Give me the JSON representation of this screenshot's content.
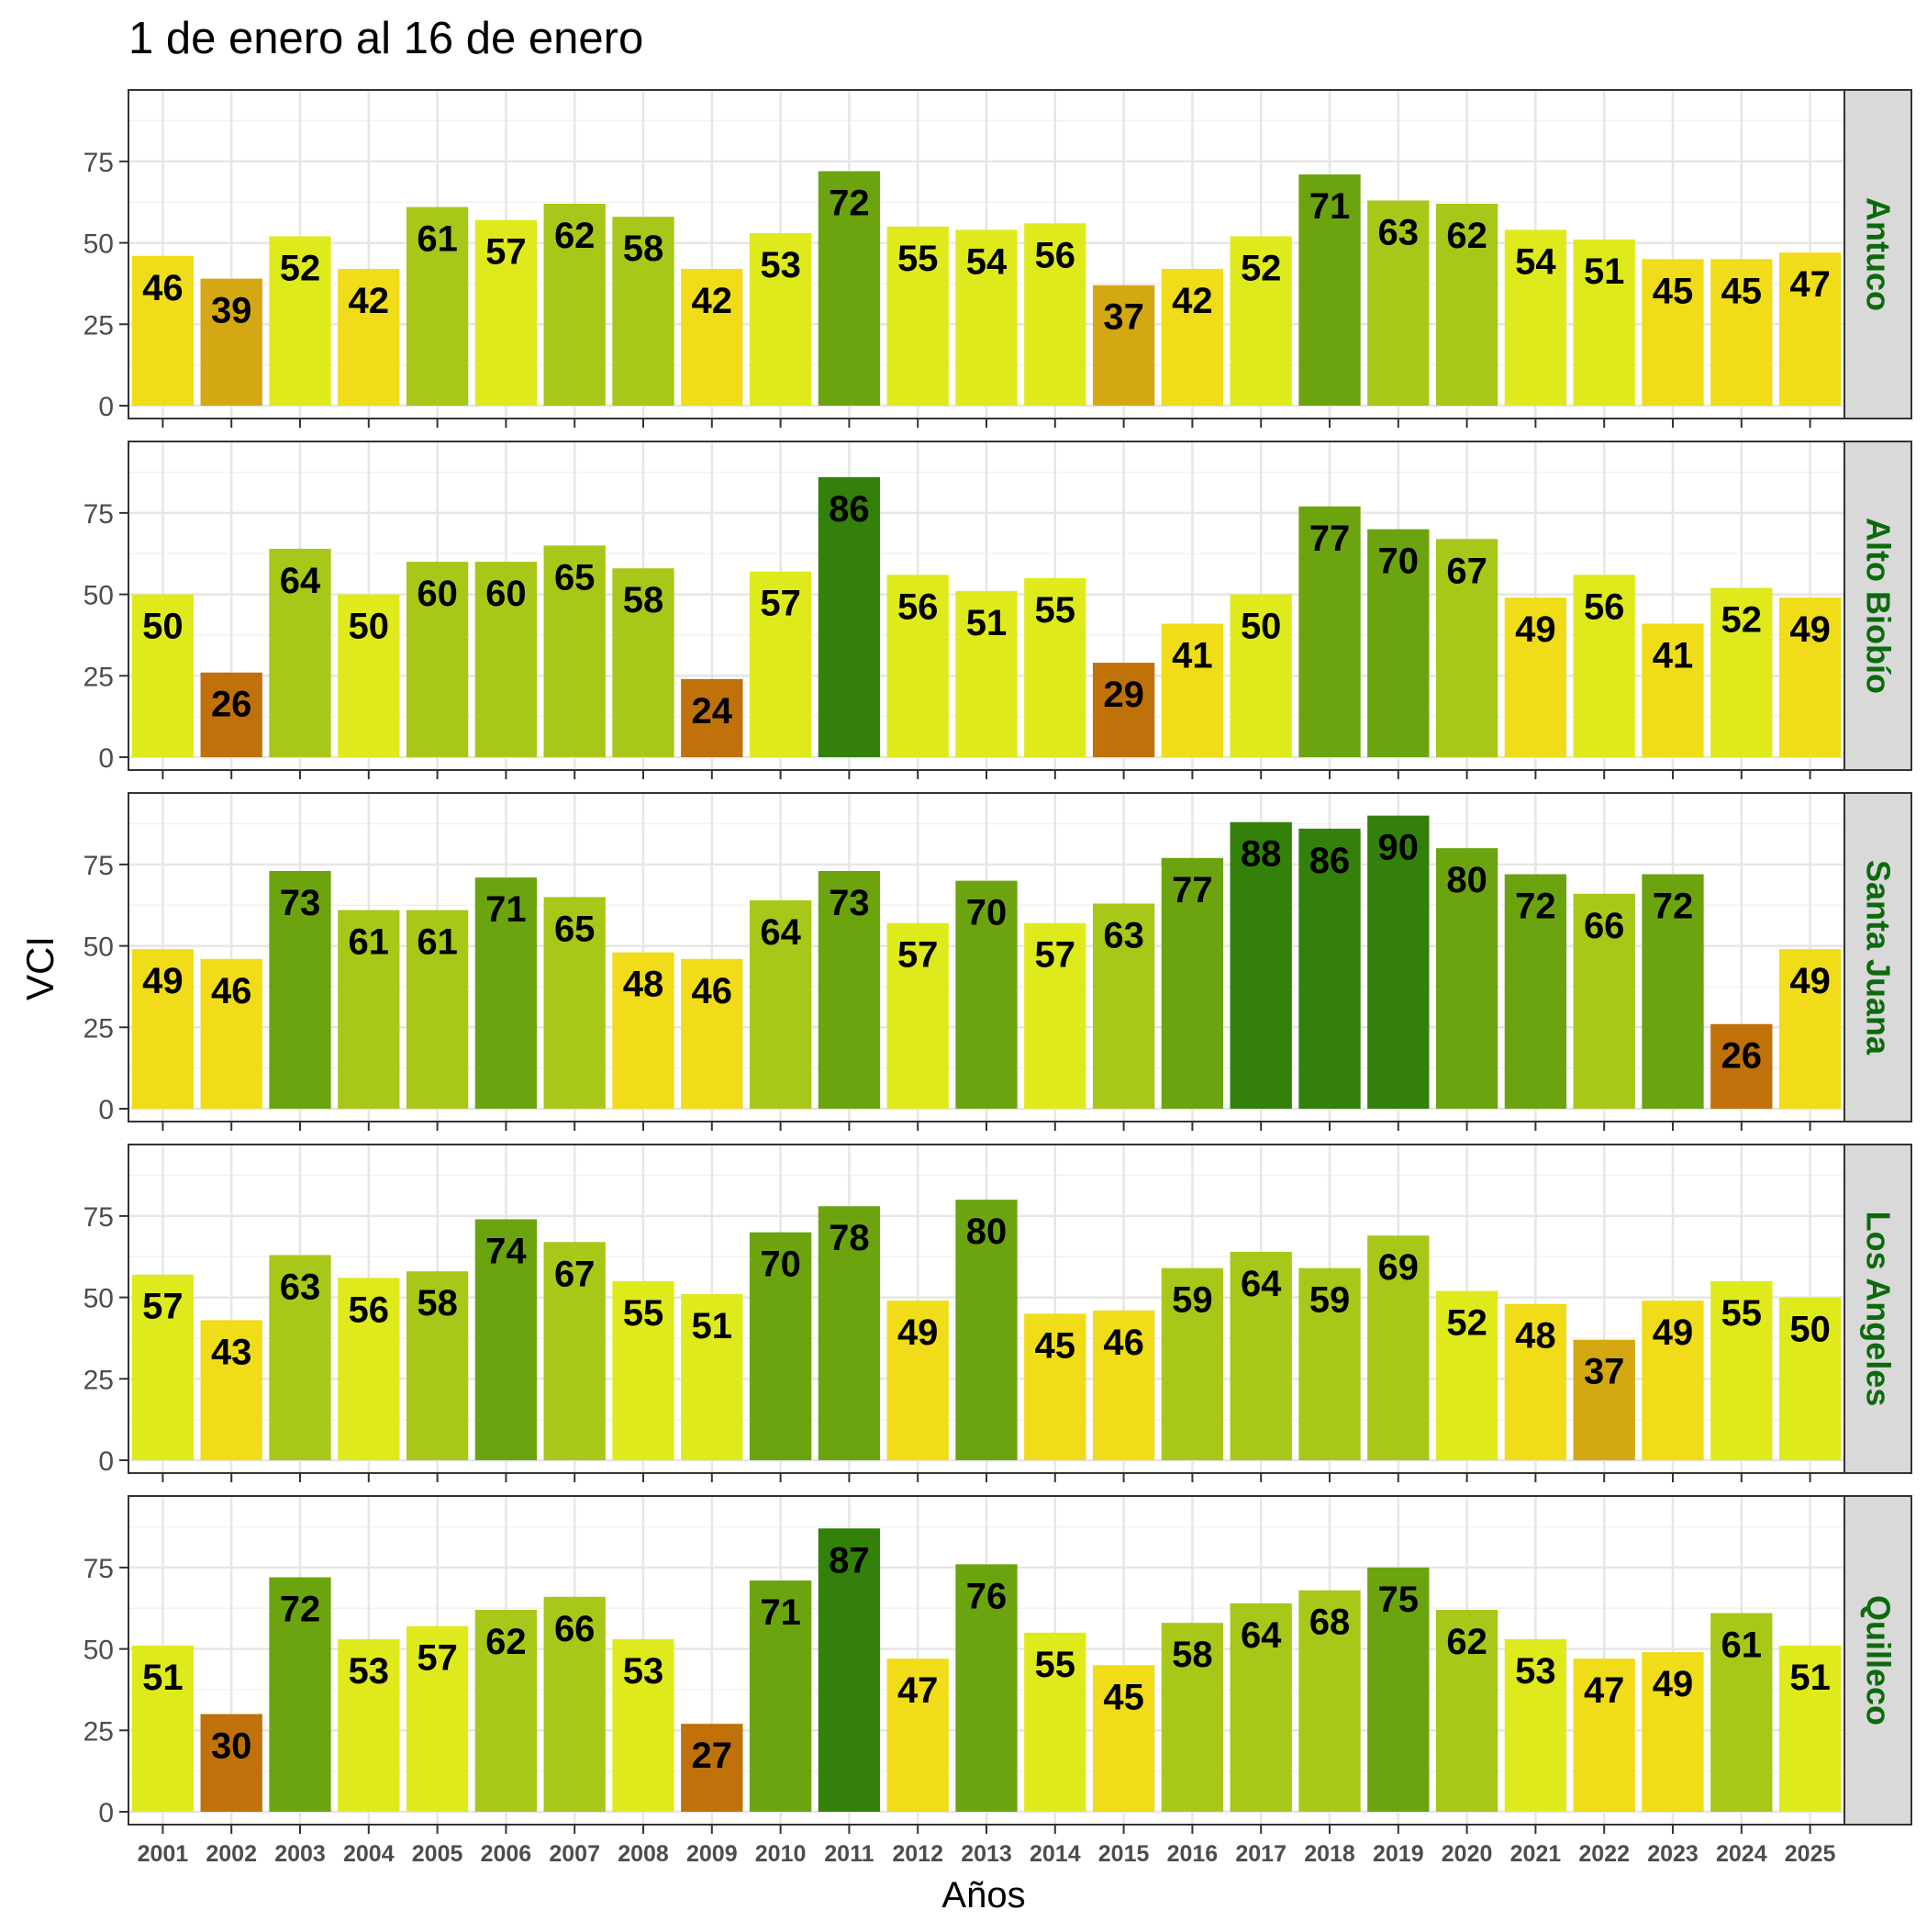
{
  "chart_data": {
    "type": "bar",
    "title": "1 de enero al 16 de enero",
    "xlabel": "Años",
    "ylabel": "VCI",
    "ylim": [
      0,
      93
    ],
    "yticks": [
      0,
      25,
      50,
      75
    ],
    "grid": true,
    "categories": [
      "2001",
      "2002",
      "2003",
      "2004",
      "2005",
      "2006",
      "2007",
      "2008",
      "2009",
      "2010",
      "2011",
      "2012",
      "2013",
      "2014",
      "2015",
      "2016",
      "2017",
      "2018",
      "2019",
      "2020",
      "2021",
      "2022",
      "2023",
      "2024",
      "2025"
    ],
    "color_scale": {
      "stops": [
        {
          "min": 20,
          "color": "#c0710a"
        },
        {
          "min": 35,
          "color": "#d4a812"
        },
        {
          "min": 40,
          "color": "#f0dc18"
        },
        {
          "min": 50,
          "color": "#dfea1c"
        },
        {
          "min": 58,
          "color": "#a7c818"
        },
        {
          "min": 70,
          "color": "#6ca410"
        },
        {
          "min": 85,
          "color": "#33800a"
        }
      ]
    },
    "strip_text_color": "#0c6a0c",
    "series": [
      {
        "name": "Antuco",
        "values": [
          46,
          39,
          52,
          42,
          61,
          57,
          62,
          58,
          42,
          53,
          72,
          55,
          54,
          56,
          37,
          42,
          52,
          71,
          63,
          62,
          54,
          51,
          45,
          45,
          47
        ]
      },
      {
        "name": "Alto Biobío",
        "values": [
          50,
          26,
          64,
          50,
          60,
          60,
          65,
          58,
          24,
          57,
          86,
          56,
          51,
          55,
          29,
          41,
          50,
          77,
          70,
          67,
          49,
          56,
          41,
          52,
          49
        ]
      },
      {
        "name": "Santa Juana",
        "values": [
          49,
          46,
          73,
          61,
          61,
          71,
          65,
          48,
          46,
          64,
          73,
          57,
          70,
          57,
          63,
          77,
          88,
          86,
          90,
          80,
          72,
          66,
          72,
          26,
          49
        ]
      },
      {
        "name": "Los Angeles",
        "values": [
          57,
          43,
          63,
          56,
          58,
          74,
          67,
          55,
          51,
          70,
          78,
          49,
          80,
          45,
          46,
          59,
          64,
          59,
          69,
          52,
          48,
          37,
          49,
          55,
          50
        ]
      },
      {
        "name": "Quilleco",
        "values": [
          51,
          30,
          72,
          53,
          57,
          62,
          66,
          53,
          27,
          71,
          87,
          47,
          76,
          55,
          45,
          58,
          64,
          68,
          75,
          62,
          53,
          47,
          49,
          61,
          51
        ]
      }
    ]
  }
}
